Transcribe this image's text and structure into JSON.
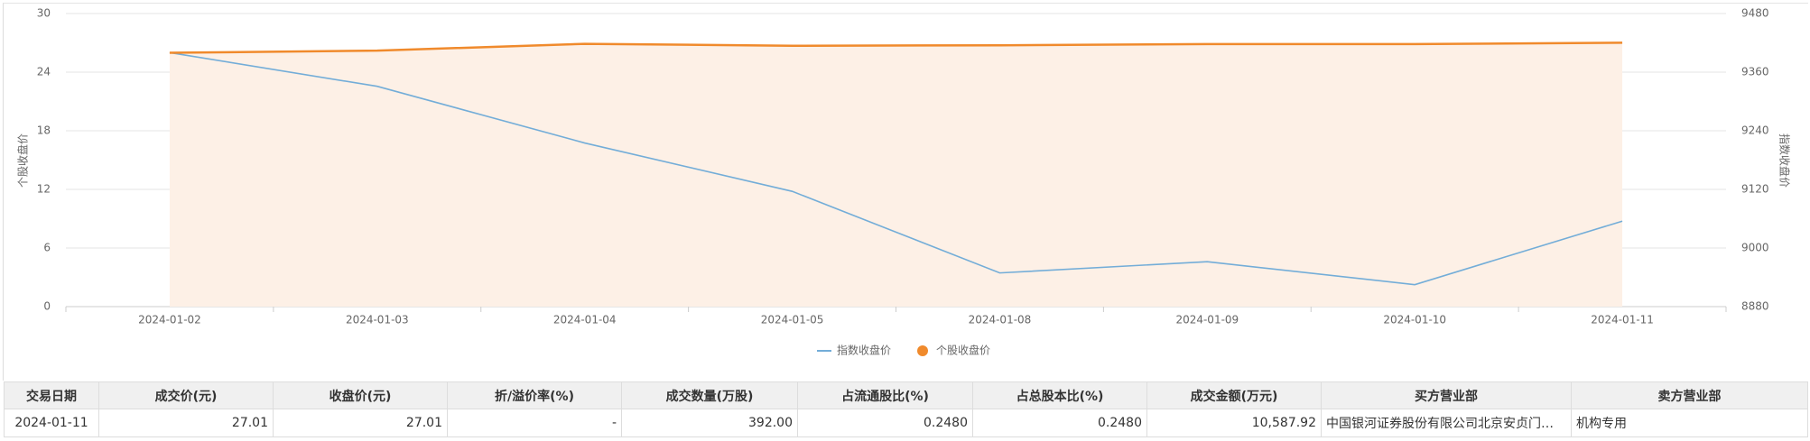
{
  "chart_data": {
    "type": "line",
    "categories": [
      "2024-01-02",
      "2024-01-03",
      "2024-01-04",
      "2024-01-05",
      "2024-01-08",
      "2024-01-09",
      "2024-01-10",
      "2024-01-11"
    ],
    "series": [
      {
        "name": "指数收盘价",
        "color": "#73add8",
        "axis": "y2",
        "values": [
          9400,
          9331,
          9215,
          9116,
          8949,
          8972,
          8925,
          9055
        ]
      },
      {
        "name": "个股收盘价",
        "color": "#f08a2c",
        "area": "#fdf0e6",
        "values": [
          25.98,
          26.2,
          26.9,
          26.7,
          26.75,
          26.87,
          26.87,
          27.01
        ]
      }
    ],
    "ylabel": "个股收盘价",
    "y2label": "指数收盘价",
    "ylim": [
      0,
      30
    ],
    "yticks": [
      0,
      6,
      12,
      18,
      24,
      30
    ],
    "y2lim": [
      8880,
      9480
    ],
    "y2ticks": [
      8880,
      9000,
      9120,
      9240,
      9360,
      9480
    ],
    "grid": true,
    "legend": "bottom"
  },
  "table": {
    "columns": [
      "交易日期",
      "成交价(元)",
      "收盘价(元)",
      "折/溢价率(%)",
      "成交数量(万股)",
      "占流通股比(%)",
      "占总股本比(%)",
      "成交金额(万元)",
      "买方营业部",
      "卖方营业部"
    ],
    "rows": [
      [
        "2024-01-11",
        "27.01",
        "27.01",
        "-",
        "392.00",
        "0.2480",
        "0.2480",
        "10,587.92",
        "中国银河证券股份有限公司北京安贞门…",
        "机构专用"
      ]
    ]
  }
}
